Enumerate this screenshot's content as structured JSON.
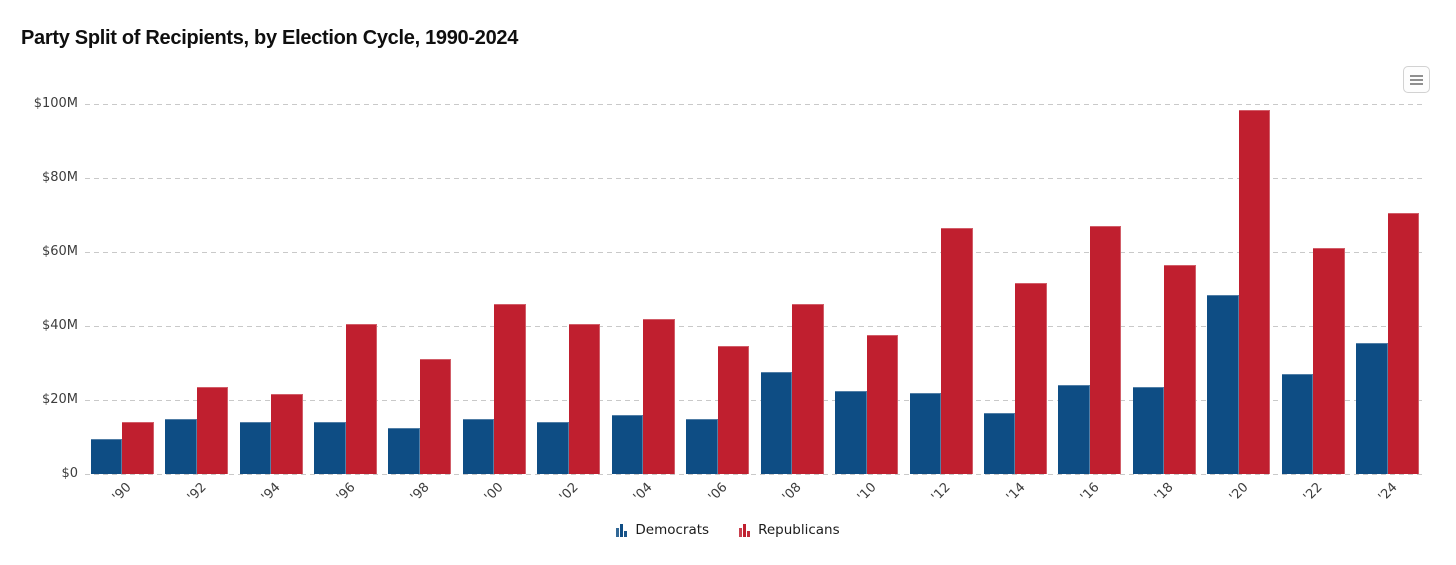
{
  "header": {
    "title": "Party Split of Recipients, by Election Cycle, 1990-2024"
  },
  "toolbar": {
    "menu_icon": "hamburger-menu"
  },
  "legend": {
    "items": [
      {
        "label": "Democrats",
        "color": "#0e4d84",
        "icon": "mini-bar-chart-icon"
      },
      {
        "label": "Republicans",
        "color": "#c01f2f",
        "icon": "mini-bar-chart-icon"
      }
    ]
  },
  "chart_data": {
    "type": "bar",
    "title": "Party Split of Recipients, by Election Cycle, 1990-2024",
    "categories": [
      "'90",
      "'92",
      "'94",
      "'96",
      "'98",
      "'00",
      "'02",
      "'04",
      "'06",
      "'08",
      "'10",
      "'12",
      "'14",
      "'16",
      "'18",
      "'20",
      "'22",
      "'24"
    ],
    "series": [
      {
        "name": "Democrats",
        "color": "#0e4d84",
        "values": [
          9.5,
          15,
          14,
          14,
          12.5,
          15,
          14,
          16,
          15,
          27.5,
          22.5,
          22,
          16.5,
          24,
          23.5,
          48.5,
          27,
          35.5
        ]
      },
      {
        "name": "Republicans",
        "color": "#c01f2f",
        "values": [
          14,
          23.5,
          21.5,
          40.5,
          31,
          46,
          40.5,
          42,
          34.5,
          46,
          37.5,
          66.5,
          51.5,
          67,
          56.5,
          98.5,
          61,
          70.5
        ]
      }
    ],
    "unit": "$M (USD millions)",
    "xlabel": "",
    "ylabel": "",
    "ylim": [
      0,
      100
    ],
    "ytick_values": [
      0,
      20,
      40,
      60,
      80,
      100
    ],
    "ytick_labels": [
      "$0",
      "$20M",
      "$40M",
      "$60M",
      "$80M",
      "$100M"
    ],
    "grid": "horizontal-dashed",
    "gridline_color": "#c9c9c9",
    "legend_position": "bottom-center"
  }
}
